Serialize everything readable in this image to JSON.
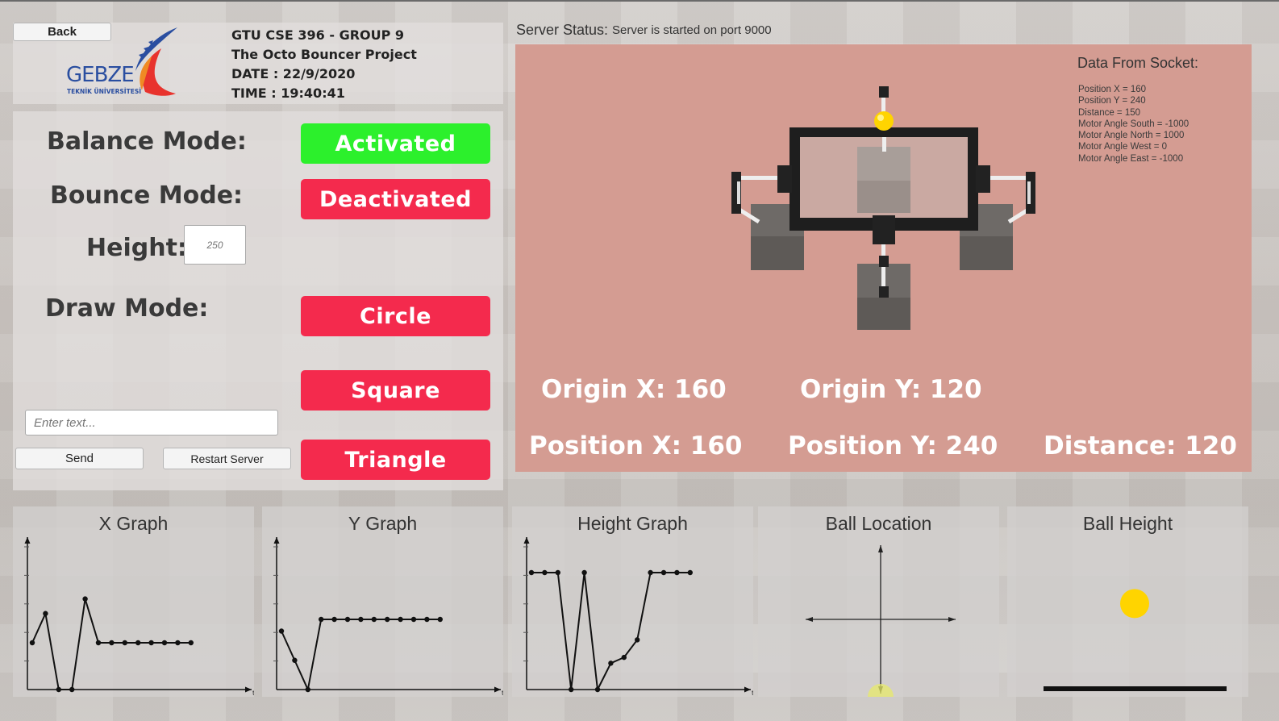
{
  "header": {
    "back_label": "Back",
    "logo_text": "GEBZE",
    "logo_sub": "TEKNİK ÜNİVERSİTESİ",
    "line1": "GTU CSE 396 - GROUP 9",
    "line2": "The Octo Bouncer Project",
    "line3": "DATE : 22/9/2020",
    "line4": "TIME : 19:40:41"
  },
  "controls": {
    "balance_label": "Balance Mode:",
    "balance_value": "Activated",
    "bounce_label": "Bounce Mode:",
    "bounce_value": "Deactivated",
    "height_label": "Height:",
    "height_placeholder": "250",
    "draw_label": "Draw Mode:",
    "draw_circle": "Circle",
    "draw_square": "Square",
    "draw_triangle": "Triangle",
    "text_placeholder": "Enter text...",
    "send_label": "Send",
    "restart_label": "Restart Server"
  },
  "server": {
    "status_label": "Server Status:",
    "status_text": "Server is started on port 9000"
  },
  "socket": {
    "title": "Data From Socket:",
    "lines": [
      "Position X = 160",
      "Position Y = 240",
      "Distance = 150",
      "Motor Angle South = -1000",
      "Motor Angle North = 1000",
      "Motor Angle West = 0",
      "Motor Angle East = -1000"
    ]
  },
  "readouts": {
    "origin_x": "Origin X: 160",
    "origin_y": "Origin Y: 120",
    "position_x": "Position X: 160",
    "position_y": "Position Y: 240",
    "distance": "Distance: 120"
  },
  "colors": {
    "activated": "#2cf02c",
    "deactivated": "#f42a4d",
    "sim_bg": "#d49c92",
    "ball": "#ffd400"
  },
  "graphs": {
    "x_title": "X Graph",
    "y_title": "Y Graph",
    "h_title": "Height Graph",
    "loc_title": "Ball Location",
    "bh_title": "Ball Height",
    "axis_t": "t"
  },
  "chart_data": [
    {
      "type": "line",
      "title": "X Graph",
      "xlabel": "t",
      "ylabel": "",
      "ylim": [
        0,
        5
      ],
      "series": [
        {
          "values": [
            1.6,
            2.6,
            0.0,
            0.0,
            3.1,
            1.6,
            1.6,
            1.6,
            1.6,
            1.6,
            1.6,
            1.6,
            1.6
          ]
        }
      ]
    },
    {
      "type": "line",
      "title": "Y Graph",
      "xlabel": "t",
      "ylabel": "",
      "ylim": [
        0,
        5
      ],
      "series": [
        {
          "values": [
            2.0,
            1.0,
            0.0,
            2.4,
            2.4,
            2.4,
            2.4,
            2.4,
            2.4,
            2.4,
            2.4,
            2.4,
            2.4
          ]
        }
      ]
    },
    {
      "type": "line",
      "title": "Height Graph",
      "xlabel": "t",
      "ylabel": "",
      "ylim": [
        0,
        5
      ],
      "series": [
        {
          "values": [
            4.0,
            4.0,
            4.0,
            0.0,
            4.0,
            0.0,
            0.9,
            1.1,
            1.7,
            4.0,
            4.0,
            4.0,
            4.0
          ]
        }
      ]
    }
  ],
  "ball_location": {
    "x": 0.0,
    "y": -1.0
  },
  "ball_height": 0.6
}
